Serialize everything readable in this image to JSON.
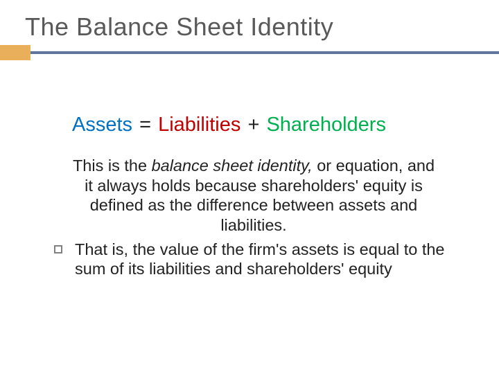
{
  "title": "The Balance Sheet Identity",
  "colors": {
    "title_text": "#595959",
    "ribbon_bar": "#60759b",
    "ribbon_accent": "#e9af5b",
    "assets": "#0070c0",
    "liabilities": "#c00000",
    "shareholders": "#00b050",
    "body_text": "#222222",
    "bullet_border": "#7f7f7f",
    "background": "#ffffff"
  },
  "formula": {
    "assets": "Assets",
    "eq": "=",
    "liabilities": "Liabilities",
    "plus": "+",
    "shareholders": "Shareholders"
  },
  "para1": {
    "lead": "This is the ",
    "italic": "balance sheet identity,",
    "rest": " or equation, and it always holds because shareholders' equity is defined as the difference between assets and liabilities."
  },
  "para2": "That is, the value of the firm's assets is equal to the sum of its liabilities and shareholders' equity",
  "typography": {
    "title_fontsize": 36,
    "formula_fontsize": 29,
    "body_fontsize": 23.5,
    "font_family": "Arial"
  }
}
